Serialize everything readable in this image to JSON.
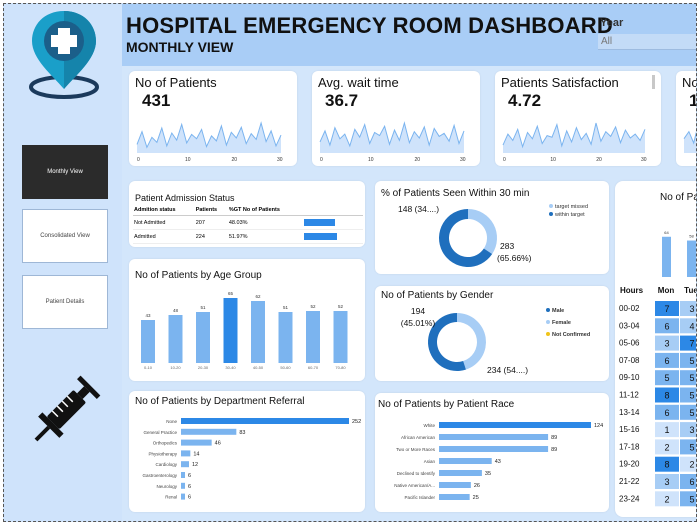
{
  "header": {
    "title": "HOSPITAL EMERGENCY ROOM DASHBOARD",
    "subtitle": "MONTHLY VIEW",
    "year_label": "Year",
    "year_value": "All"
  },
  "nav": {
    "monthly": "Monthly View",
    "consolidated": "Consolidated View",
    "details": "Patient Details"
  },
  "kpis": [
    {
      "title": "No of Patients",
      "value": "431",
      "spark": [
        12,
        30,
        8,
        22,
        15,
        35,
        10,
        28,
        18,
        40,
        14,
        26,
        20,
        33,
        9,
        24,
        17,
        38,
        11,
        29,
        21,
        36,
        13,
        27,
        19,
        42,
        16,
        31,
        10,
        25
      ]
    },
    {
      "title": "Avg. wait time",
      "value": "36.7",
      "spark": [
        14,
        28,
        10,
        32,
        18,
        24,
        9,
        30,
        20,
        36,
        12,
        26,
        22,
        34,
        11,
        29,
        16,
        38,
        13,
        27,
        19,
        33,
        10,
        31,
        21,
        25,
        15,
        35,
        12,
        28
      ]
    },
    {
      "title": "Patients Satisfaction",
      "value": "4.72",
      "spark": [
        10,
        24,
        16,
        30,
        8,
        26,
        18,
        34,
        12,
        22,
        20,
        36,
        9,
        28,
        14,
        32,
        17,
        25,
        11,
        38,
        15,
        27,
        21,
        33,
        13,
        29,
        19,
        24,
        16,
        30
      ]
    },
    {
      "title": "No o",
      "value": "1",
      "spark": [
        20,
        30,
        14,
        42,
        10,
        36,
        16,
        28
      ]
    }
  ],
  "admission": {
    "title": "Patient Admission Status",
    "headers": [
      "Admition status",
      "Patients",
      "%GT No of Patients"
    ],
    "rows": [
      {
        "status": "Not Admitted",
        "patients": "207",
        "pct": "48.03%",
        "frac": 0.48
      },
      {
        "status": "Admitted",
        "patients": "224",
        "pct": "51.97%",
        "frac": 0.52
      }
    ]
  },
  "seen_within": {
    "title": "% of Patients Seen Within 30 min",
    "missed_label": "148 (34....)",
    "within_label_1": "283",
    "within_label_2": "(65.66%)",
    "legend": [
      "target missed",
      "within target"
    ],
    "colors": {
      "missed": "#a7cdf5",
      "within": "#1f6fbd"
    },
    "missed_frac": 0.3434
  },
  "age_group": {
    "title": "No of Patients by Age Group",
    "bars": [
      {
        "label": "0-10",
        "value": 43
      },
      {
        "label": "10-20",
        "value": 48
      },
      {
        "label": "20-30",
        "value": 51
      },
      {
        "label": "30-40",
        "value": 65
      },
      {
        "label": "40-50",
        "value": 62
      },
      {
        "label": "50-60",
        "value": 51
      },
      {
        "label": "60-70",
        "value": 52
      },
      {
        "label": "70-80",
        "value": 52
      }
    ],
    "colors": {
      "normal": "#7bb4ef",
      "peak": "#2c88e6"
    }
  },
  "gender": {
    "title": "No of Patients by Gender",
    "female_label_1": "194",
    "female_label_2": "(45.01%)",
    "male_label": "234 (54....)",
    "legend": [
      "Male",
      "Female",
      "Not Confirmed"
    ],
    "colors": {
      "male": "#1f6fbd",
      "female": "#a7cdf5",
      "nc": "#f0c419"
    },
    "female_frac": 0.4501
  },
  "referral": {
    "title": "No of Patients by Department Referral",
    "rows": [
      {
        "label": "None",
        "value": 252
      },
      {
        "label": "General Practice",
        "value": 83
      },
      {
        "label": "Orthopedics",
        "value": 46
      },
      {
        "label": "Physiotherapy",
        "value": 14
      },
      {
        "label": "Cardiology",
        "value": 12
      },
      {
        "label": "Gastroenterology",
        "value": 6
      },
      {
        "label": "Neurology",
        "value": 6
      },
      {
        "label": "Renal",
        "value": 6
      }
    ]
  },
  "race": {
    "title": "No of Patients by Patient Race",
    "rows": [
      {
        "label": "White",
        "value": 124
      },
      {
        "label": "African American",
        "value": 89
      },
      {
        "label": "Two or More Races",
        "value": 89
      },
      {
        "label": "Asian",
        "value": 43
      },
      {
        "label": "Declined to Identify",
        "value": 35
      },
      {
        "label": "Native American/A...",
        "value": 26
      },
      {
        "label": "Pacific Islander",
        "value": 25
      }
    ]
  },
  "right_panel": {
    "title": "No of Pat",
    "day_headers": [
      "Mon",
      "Tue"
    ],
    "hours_label": "Hours",
    "top_bars": [
      {
        "value": 64
      },
      {
        "value": 58
      }
    ],
    "hours": [
      "00-02",
      "03-04",
      "05-06",
      "07-08",
      "09-10",
      "11-12",
      "13-14",
      "15-16",
      "17-18",
      "19-20",
      "21-22",
      "23-24"
    ],
    "mon": [
      "7",
      "6",
      "3",
      "6",
      "5",
      "8",
      "6",
      "1",
      "2",
      "8",
      "3",
      "2"
    ],
    "tue": [
      "3",
      "4",
      "7",
      "5",
      "5",
      "5",
      "5",
      "3",
      "5",
      "2",
      "6",
      "5"
    ]
  }
}
